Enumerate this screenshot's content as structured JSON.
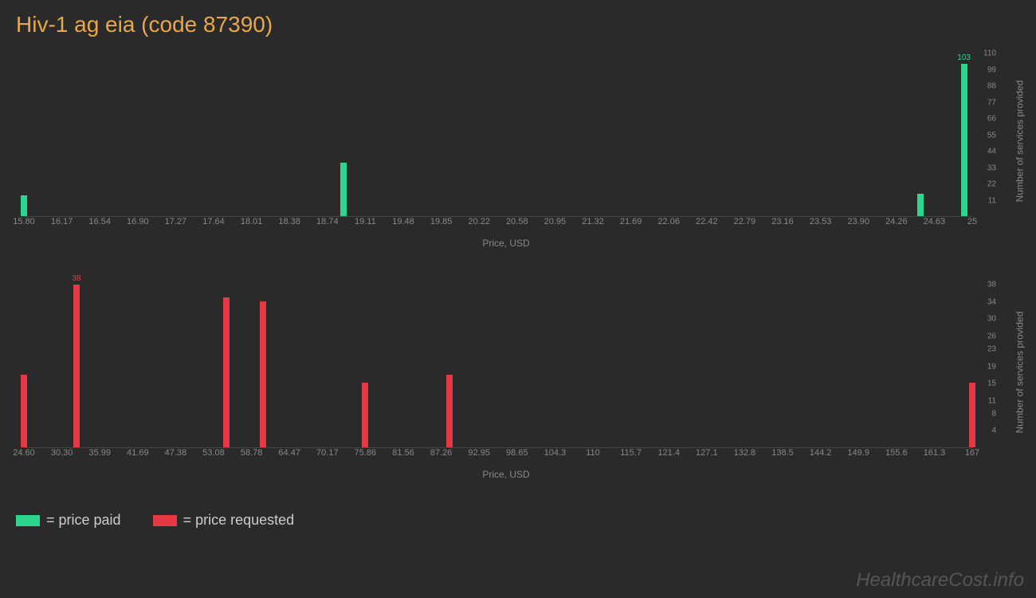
{
  "title": "Hiv-1 ag eia (code 87390)",
  "watermark": "HealthcareCost.info",
  "colors": {
    "paid": "#2dd68f",
    "requested": "#e63946",
    "background": "#2a2a2a",
    "title": "#e8a849",
    "axis_text": "#888888"
  },
  "legend": {
    "paid": "= price paid",
    "requested": "= price requested"
  },
  "chart1": {
    "type": "bar",
    "x_label": "Price, USD",
    "y_label": "Number of services provided",
    "x_ticks": [
      "15.80",
      "16.17",
      "16.54",
      "16.90",
      "17.27",
      "17.64",
      "18.01",
      "18.38",
      "18.74",
      "19.11",
      "19.48",
      "19.85",
      "20.22",
      "20.58",
      "20.95",
      "21.32",
      "21.69",
      "22.06",
      "22.42",
      "22.79",
      "23.16",
      "23.53",
      "23.90",
      "24.26",
      "24.63",
      "25"
    ],
    "x_min": 15.8,
    "x_max": 25.0,
    "y_ticks": [
      11,
      22,
      33,
      44,
      55,
      66,
      77,
      88,
      99,
      110
    ],
    "y_min": 0,
    "y_max": 110,
    "bars": [
      {
        "x": 15.8,
        "y": 14,
        "label": ""
      },
      {
        "x": 18.9,
        "y": 36,
        "label": ""
      },
      {
        "x": 24.5,
        "y": 15,
        "label": ""
      },
      {
        "x": 24.92,
        "y": 103,
        "label": "103"
      }
    ],
    "bar_color": "#2dd68f"
  },
  "chart2": {
    "type": "bar",
    "x_label": "Price, USD",
    "y_label": "Number of services provided",
    "x_ticks": [
      "24.60",
      "30.30",
      "35.99",
      "41.69",
      "47.38",
      "53.08",
      "58.78",
      "64.47",
      "70.17",
      "75.86",
      "81.56",
      "87.26",
      "92.95",
      "98.65",
      "104.3",
      "110",
      "115.7",
      "121.4",
      "127.1",
      "132.8",
      "138.5",
      "144.2",
      "149.9",
      "155.6",
      "161.3",
      "167"
    ],
    "x_min": 24.6,
    "x_max": 167.0,
    "y_ticks": [
      4,
      8,
      11,
      15,
      19,
      23,
      26,
      30,
      34,
      38
    ],
    "y_min": 0,
    "y_max": 38,
    "bars": [
      {
        "x": 24.6,
        "y": 17,
        "label": ""
      },
      {
        "x": 32.5,
        "y": 38,
        "label": "38"
      },
      {
        "x": 55.0,
        "y": 35,
        "label": ""
      },
      {
        "x": 60.5,
        "y": 34,
        "label": ""
      },
      {
        "x": 75.86,
        "y": 15,
        "label": ""
      },
      {
        "x": 88.5,
        "y": 17,
        "label": ""
      },
      {
        "x": 167.0,
        "y": 15,
        "label": ""
      }
    ],
    "bar_color": "#e63946"
  }
}
